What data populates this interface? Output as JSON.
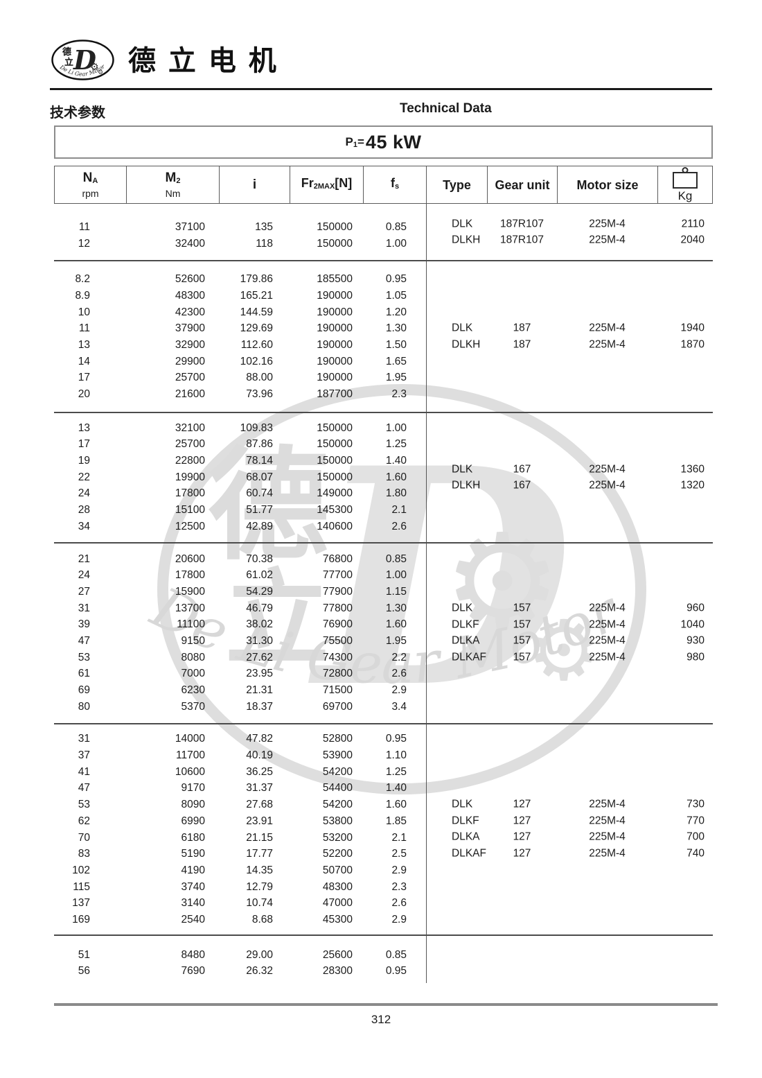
{
  "brand": {
    "logo": {
      "char_top": "德",
      "char_bottom": "立",
      "monogram": "D",
      "arc_text": "De Li Gear Motor"
    },
    "name_cn": "德 立 电 机",
    "watermark": {
      "char_top": "德",
      "char_bottom": "立",
      "monogram": "D",
      "arc_text": "De Li Gear Motor"
    }
  },
  "header": {
    "title_cn": "技术参数",
    "title_en": "Technical Data"
  },
  "power": {
    "p": "P",
    "sub": "1",
    "eq": "=",
    "value": "45 kW"
  },
  "table": {
    "columns": [
      {
        "main": "N",
        "sub": "A",
        "unit": "rpm"
      },
      {
        "main": "M",
        "sub": "2",
        "unit": "Nm"
      },
      {
        "main": "i"
      },
      {
        "main": "Fr",
        "sub": "2MAX",
        "tail": "[N]"
      },
      {
        "main": "f",
        "sub": "s"
      },
      {
        "label": "Type"
      },
      {
        "label": "Gear unit"
      },
      {
        "label": "Motor size"
      },
      {
        "label": "Kg",
        "icon": "weight-icon"
      }
    ],
    "groups": [
      {
        "rows": [
          [
            "11",
            "37100",
            "135",
            "150000",
            "0.85"
          ],
          [
            "12",
            "32400",
            "118",
            "150000",
            "1.00"
          ]
        ],
        "info": [
          {
            "type": "DLK",
            "gear": "187R107",
            "motor": "225M-4",
            "kg": "2110"
          },
          {
            "type": "DLKH",
            "gear": "187R107",
            "motor": "225M-4",
            "kg": "2040"
          }
        ]
      },
      {
        "rows": [
          [
            "8.2",
            "52600",
            "179.86",
            "185500",
            "0.95"
          ],
          [
            "8.9",
            "48300",
            "165.21",
            "190000",
            "1.05"
          ],
          [
            "10",
            "42300",
            "144.59",
            "190000",
            "1.20"
          ],
          [
            "11",
            "37900",
            "129.69",
            "190000",
            "1.30"
          ],
          [
            "13",
            "32900",
            "112.60",
            "190000",
            "1.50"
          ],
          [
            "14",
            "29900",
            "102.16",
            "190000",
            "1.65"
          ],
          [
            "17",
            "25700",
            "88.00",
            "190000",
            "1.95"
          ],
          [
            "20",
            "21600",
            "73.96",
            "187700",
            "2.3"
          ]
        ],
        "info": [
          {
            "type": "DLK",
            "gear": "187",
            "motor": "225M-4",
            "kg": "1940"
          },
          {
            "type": "DLKH",
            "gear": "187",
            "motor": "225M-4",
            "kg": "1870"
          }
        ]
      },
      {
        "rows": [
          [
            "13",
            "32100",
            "109.83",
            "150000",
            "1.00"
          ],
          [
            "17",
            "25700",
            "87.86",
            "150000",
            "1.25"
          ],
          [
            "19",
            "22800",
            "78.14",
            "150000",
            "1.40"
          ],
          [
            "22",
            "19900",
            "68.07",
            "150000",
            "1.60"
          ],
          [
            "24",
            "17800",
            "60.74",
            "149000",
            "1.80"
          ],
          [
            "28",
            "15100",
            "51.77",
            "145300",
            "2.1"
          ],
          [
            "34",
            "12500",
            "42.89",
            "140600",
            "2.6"
          ]
        ],
        "info": [
          {
            "type": "DLK",
            "gear": "167",
            "motor": "225M-4",
            "kg": "1360"
          },
          {
            "type": "DLKH",
            "gear": "167",
            "motor": "225M-4",
            "kg": "1320"
          }
        ]
      },
      {
        "rows": [
          [
            "21",
            "20600",
            "70.38",
            "76800",
            "0.85"
          ],
          [
            "24",
            "17800",
            "61.02",
            "77700",
            "1.00"
          ],
          [
            "27",
            "15900",
            "54.29",
            "77900",
            "1.15"
          ],
          [
            "31",
            "13700",
            "46.79",
            "77800",
            "1.30"
          ],
          [
            "39",
            "11100",
            "38.02",
            "76900",
            "1.60"
          ],
          [
            "47",
            "9150",
            "31.30",
            "75500",
            "1.95"
          ],
          [
            "53",
            "8080",
            "27.62",
            "74300",
            "2.2"
          ],
          [
            "61",
            "7000",
            "23.95",
            "72800",
            "2.6"
          ],
          [
            "69",
            "6230",
            "21.31",
            "71500",
            "2.9"
          ],
          [
            "80",
            "5370",
            "18.37",
            "69700",
            "3.4"
          ]
        ],
        "info": [
          {
            "type": "DLK",
            "gear": "157",
            "motor": "225M-4",
            "kg": "960"
          },
          {
            "type": "DLKF",
            "gear": "157",
            "motor": "225M-4",
            "kg": "1040"
          },
          {
            "type": "DLKA",
            "gear": "157",
            "motor": "225M-4",
            "kg": "930"
          },
          {
            "type": "DLKAF",
            "gear": "157",
            "motor": "225M-4",
            "kg": "980"
          }
        ]
      },
      {
        "rows": [
          [
            "31",
            "14000",
            "47.82",
            "52800",
            "0.95"
          ],
          [
            "37",
            "11700",
            "40.19",
            "53900",
            "1.10"
          ],
          [
            "41",
            "10600",
            "36.25",
            "54200",
            "1.25"
          ],
          [
            "47",
            "9170",
            "31.37",
            "54400",
            "1.40"
          ],
          [
            "53",
            "8090",
            "27.68",
            "54200",
            "1.60"
          ],
          [
            "62",
            "6990",
            "23.91",
            "53800",
            "1.85"
          ],
          [
            "70",
            "6180",
            "21.15",
            "53200",
            "2.1"
          ],
          [
            "83",
            "5190",
            "17.77",
            "52200",
            "2.5"
          ],
          [
            "102",
            "4190",
            "14.35",
            "50700",
            "2.9"
          ],
          [
            "115",
            "3740",
            "12.79",
            "48300",
            "2.3"
          ],
          [
            "137",
            "3140",
            "10.74",
            "47000",
            "2.6"
          ],
          [
            "169",
            "2540",
            "8.68",
            "45300",
            "2.9"
          ]
        ],
        "info": [
          {
            "type": "DLK",
            "gear": "127",
            "motor": "225M-4",
            "kg": "730"
          },
          {
            "type": "DLKF",
            "gear": "127",
            "motor": "225M-4",
            "kg": "770"
          },
          {
            "type": "DLKA",
            "gear": "127",
            "motor": "225M-4",
            "kg": "700"
          },
          {
            "type": "DLKAF",
            "gear": "127",
            "motor": "225M-4",
            "kg": "740"
          }
        ]
      },
      {
        "rows": [
          [
            "51",
            "8480",
            "29.00",
            "25600",
            "0.85"
          ],
          [
            "56",
            "7690",
            "26.32",
            "28300",
            "0.95"
          ]
        ],
        "info": []
      }
    ]
  },
  "page_number": "312"
}
